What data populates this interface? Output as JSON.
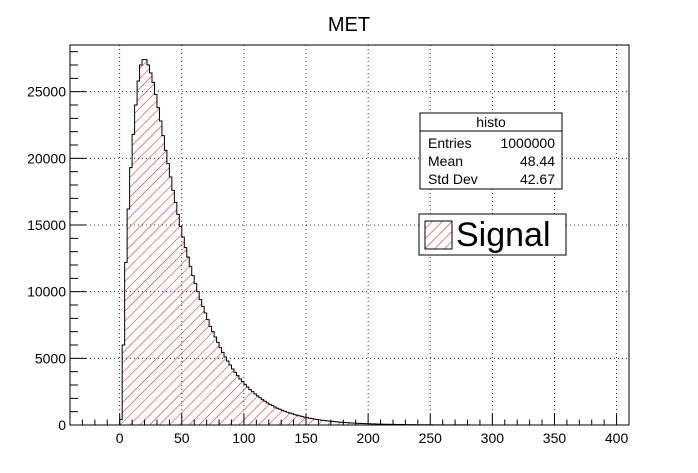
{
  "chart_data": {
    "type": "bar",
    "title": "MET",
    "xlabel": "",
    "ylabel": "",
    "xlim": [
      -40,
      410
    ],
    "ylim": [
      0,
      28500
    ],
    "grid": true,
    "xticks": [
      0,
      50,
      100,
      150,
      200,
      250,
      300,
      350,
      400
    ],
    "xtick_labels": [
      "0",
      "50",
      "100",
      "150",
      "200",
      "250",
      "300",
      "350",
      "400"
    ],
    "yticks": [
      0,
      5000,
      10000,
      15000,
      20000,
      25000
    ],
    "ytick_labels": [
      "0",
      "5000",
      "10000",
      "15000",
      "20000",
      "25000"
    ],
    "series": [
      {
        "name": "Signal",
        "color": "#ff0000",
        "fill": "hatched",
        "bin_width": 2,
        "x_start": 0,
        "values": [
          400,
          6000,
          12200,
          16200,
          19300,
          21800,
          24000,
          25800,
          27000,
          27400,
          27400,
          27000,
          26400,
          25700,
          24800,
          23800,
          22800,
          21700,
          20600,
          19600,
          18600,
          17600,
          16700,
          15800,
          14900,
          14100,
          13300,
          12600,
          11900,
          11200,
          10600,
          10000,
          9400,
          8900,
          8400,
          7900,
          7400,
          7000,
          6600,
          6200,
          5800,
          5450,
          5100,
          4800,
          4500,
          4200,
          3950,
          3700,
          3450,
          3250,
          3050,
          2850,
          2650,
          2500,
          2330,
          2180,
          2040,
          1900,
          1780,
          1660,
          1550,
          1450,
          1350,
          1260,
          1180,
          1100,
          1030,
          960,
          900,
          840,
          780,
          730,
          680,
          630,
          590,
          550,
          510,
          475,
          445,
          415,
          385,
          360,
          335,
          310,
          290,
          270,
          250,
          235,
          218,
          203,
          189,
          176,
          164,
          152,
          142,
          132,
          123,
          114,
          106,
          99,
          92,
          86,
          80,
          74,
          69,
          64,
          60,
          56,
          52,
          48,
          45,
          42,
          39,
          36,
          33,
          31,
          29,
          27,
          25,
          23,
          21,
          20,
          18,
          17,
          16,
          15,
          14,
          13,
          12,
          11,
          10,
          9,
          8,
          8,
          7,
          7,
          6,
          6,
          5,
          5,
          5,
          4,
          4,
          4,
          3,
          3,
          3,
          3
        ]
      }
    ],
    "legend": {
      "position": "right",
      "entries": [
        "Signal"
      ]
    }
  },
  "stats_box": {
    "title": "histo",
    "rows": [
      {
        "label": "Entries",
        "value": "1000000"
      },
      {
        "label": "Mean",
        "value": "48.44"
      },
      {
        "label": "Std Dev",
        "value": "42.67"
      }
    ]
  }
}
